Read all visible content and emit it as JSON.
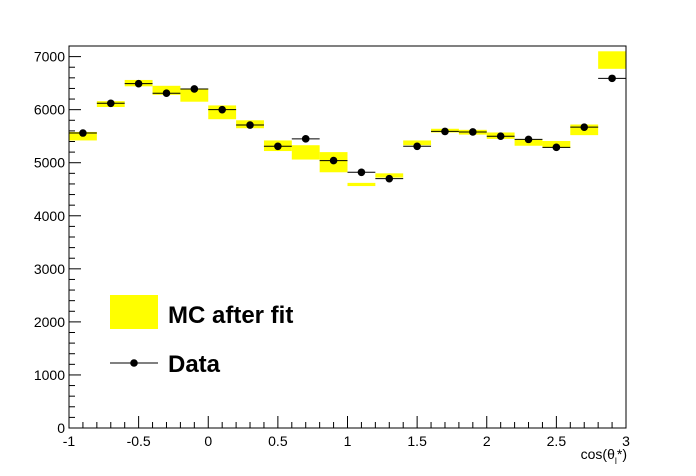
{
  "chart_data": {
    "type": "histogram",
    "xlabel": "cos(θl*)",
    "xlim": [
      -1,
      3
    ],
    "ylim": [
      0,
      7200
    ],
    "x_ticks": [
      "-1",
      "-0.5",
      "0",
      "0.5",
      "1",
      "1.5",
      "2",
      "2.5",
      "3"
    ],
    "y_ticks": [
      "0",
      "1000",
      "2000",
      "3000",
      "4000",
      "5000",
      "6000",
      "7000"
    ],
    "bin_width": 0.2,
    "bin_centers": [
      -0.9,
      -0.7,
      -0.5,
      -0.3,
      -0.1,
      0.1,
      0.3,
      0.5,
      0.7,
      0.9,
      1.1,
      1.3,
      1.5,
      1.7,
      1.9,
      2.1,
      2.3,
      2.5,
      2.7,
      2.9
    ],
    "series": [
      {
        "name": "MC after fit",
        "style": "band",
        "color": "#ffff00",
        "low": [
          5420,
          6050,
          6440,
          6280,
          6150,
          5820,
          5650,
          5220,
          5060,
          4820,
          4560,
          4720,
          5330,
          5570,
          5530,
          5450,
          5320,
          5280,
          5520,
          6770
        ],
        "high": [
          5580,
          6160,
          6560,
          6450,
          6400,
          6080,
          5800,
          5420,
          5330,
          5200,
          4620,
          4800,
          5420,
          5640,
          5620,
          5570,
          5440,
          5410,
          5720,
          7100
        ]
      },
      {
        "name": "Data",
        "style": "markers",
        "color": "#000000",
        "values": [
          5560,
          6120,
          6490,
          6310,
          6390,
          6000,
          5710,
          5310,
          5450,
          5040,
          4820,
          4700,
          5310,
          5590,
          5580,
          5500,
          5440,
          5290,
          5670,
          6590
        ]
      }
    ],
    "legend_position": "bottom-left"
  }
}
